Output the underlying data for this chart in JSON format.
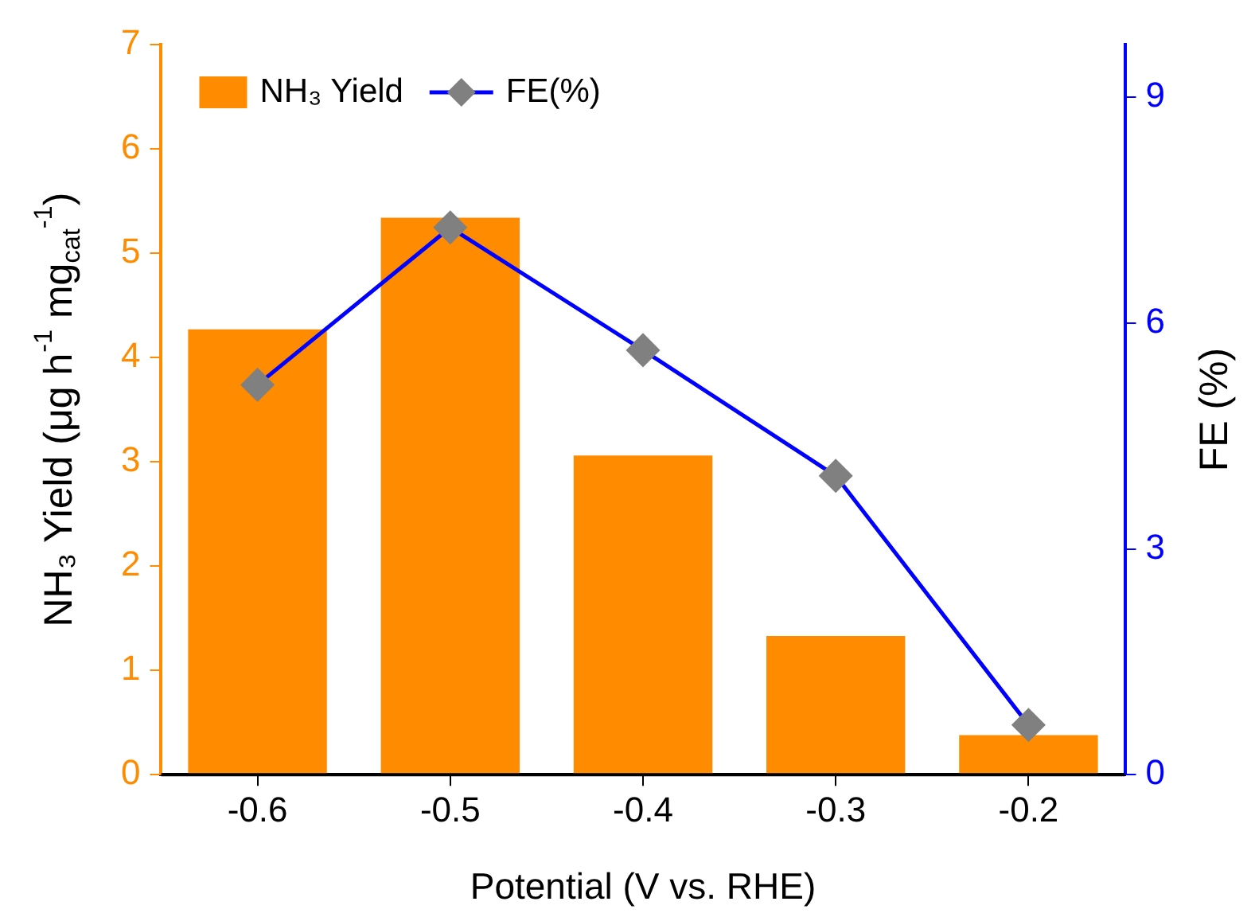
{
  "chart_data": {
    "type": "bar",
    "xlabel": "Potential (V vs. RHE)",
    "ylabel": "NH₃ Yield (μg h$^{-1}$ mg$_{cat}$$^{-1}$)",
    "y2label": "FE (%)",
    "categories": [
      "-0.6",
      "-0.5",
      "-0.4",
      "-0.3",
      "-0.2"
    ],
    "series": [
      {
        "name": "NH₃ Yield",
        "color": "#ff8c00",
        "values": [
          4.27,
          5.34,
          3.06,
          1.33,
          0.38
        ]
      },
      {
        "name": "FE(%)",
        "type": "line",
        "axis": "y2",
        "color": "#0000ff",
        "colors": [
          "#808080",
          "#808080",
          "#808080",
          "#808080",
          "#808080"
        ],
        "values": [
          5.18,
          7.27,
          5.64,
          3.97,
          0.66
        ]
      }
    ],
    "ylim": [
      0,
      7
    ],
    "yticks": [
      0,
      1,
      2,
      3,
      4,
      5,
      6,
      7
    ],
    "y2lim": [
      0,
      9.7
    ],
    "y2ticks": [
      0,
      3,
      6,
      9
    ],
    "marker": "diamond",
    "line_style": "solid",
    "legend": "top left"
  }
}
